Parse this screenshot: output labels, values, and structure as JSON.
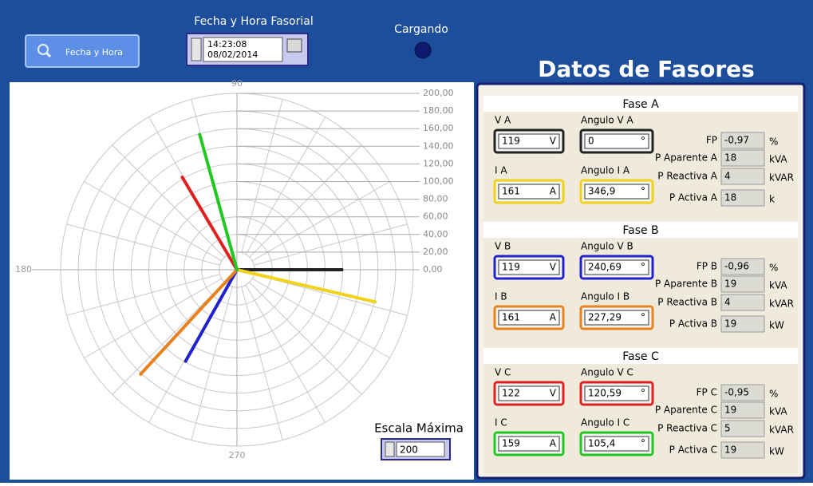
{
  "header": {
    "button": "Fecha y Hora",
    "datetime_label": "Fecha y Hora Fasorial",
    "time": "14:23:08",
    "date": "08/02/2014",
    "status": "Cargando",
    "title": "Datos de Fasores"
  },
  "polar": {
    "angle_labels": [
      "90",
      "180",
      "270"
    ],
    "radius_ticks": [
      {
        "value": 200,
        "label": "200,00"
      },
      {
        "value": 180,
        "label": "180,00"
      },
      {
        "value": 160,
        "label": "160,00"
      },
      {
        "value": 140,
        "label": "140,00"
      },
      {
        "value": 120,
        "label": "120,00"
      },
      {
        "value": 100,
        "label": "100,00"
      },
      {
        "value": 80,
        "label": "80,00"
      },
      {
        "value": 60,
        "label": "60,00"
      },
      {
        "value": 40,
        "label": "40,00"
      },
      {
        "value": 20,
        "label": "20,00"
      },
      {
        "value": 0,
        "label": "0,00"
      }
    ],
    "scale_label": "Escala Máxima",
    "scale_max": 200
  },
  "phases": [
    {
      "title": "Fase A",
      "v_label": "V A",
      "v": 119,
      "v_unit": "V",
      "v_color": "#222222",
      "va_label": "Angulo V A",
      "va": 0,
      "va_unit": "°",
      "i_label": "I A",
      "i": 161,
      "i_unit": "A",
      "i_color": "#f2d21a",
      "ia_label": "Angulo I A",
      "ia": {
        "value": 346.9,
        "label": "346,9"
      },
      "ia_unit": "°",
      "fp_label": "FP",
      "fp": {
        "value": -0.97,
        "label": "-0,97"
      },
      "fp_unit": "%",
      "pa_label": "P Aparente A",
      "pa": 18,
      "pa_unit": "kVA",
      "pr_label": "P Reactiva A",
      "pr": 4,
      "pr_unit": "kVAR",
      "pac_label": "P Activa A",
      "pac": 18,
      "pac_unit": "k"
    },
    {
      "title": "Fase B",
      "v_label": "V B",
      "v": 119,
      "v_unit": "V",
      "v_color": "#2222cc",
      "va_label": "Angulo V B",
      "va": {
        "value": 240.69,
        "label": "240,69"
      },
      "va_unit": "°",
      "i_label": "I B",
      "i": 161,
      "i_unit": "A",
      "i_color": "#e8821e",
      "ia_label": "Angulo I B",
      "ia": {
        "value": 227.29,
        "label": "227,29"
      },
      "ia_unit": "°",
      "fp_label": "FP B",
      "fp": {
        "value": -0.96,
        "label": "-0,96"
      },
      "fp_unit": "%",
      "pa_label": "P Aparente B",
      "pa": 19,
      "pa_unit": "kVA",
      "pr_label": "P Reactiva B",
      "pr": 4,
      "pr_unit": "kVAR",
      "pac_label": "P Activa B",
      "pac": 19,
      "pac_unit": "kW"
    },
    {
      "title": "Fase C",
      "v_label": "V C",
      "v": 122,
      "v_unit": "V",
      "v_color": "#e02020",
      "va_label": "Angulo V C",
      "va": {
        "value": 120.59,
        "label": "120,59"
      },
      "va_unit": "°",
      "i_label": "I C",
      "i": 159,
      "i_unit": "A",
      "i_color": "#22c822",
      "ia_label": "Angulo I C",
      "ia": {
        "value": 105.4,
        "label": "105,4"
      },
      "ia_unit": "°",
      "fp_label": "FP C",
      "fp": {
        "value": -0.95,
        "label": "-0,95"
      },
      "fp_unit": "%",
      "pa_label": "P Aparente C",
      "pa": 19,
      "pa_unit": "kVA",
      "pr_label": "P Reactiva C",
      "pr": 5,
      "pr_unit": "kVAR",
      "pac_label": "P Activa C",
      "pac": 19,
      "pac_unit": "kW"
    }
  ]
}
